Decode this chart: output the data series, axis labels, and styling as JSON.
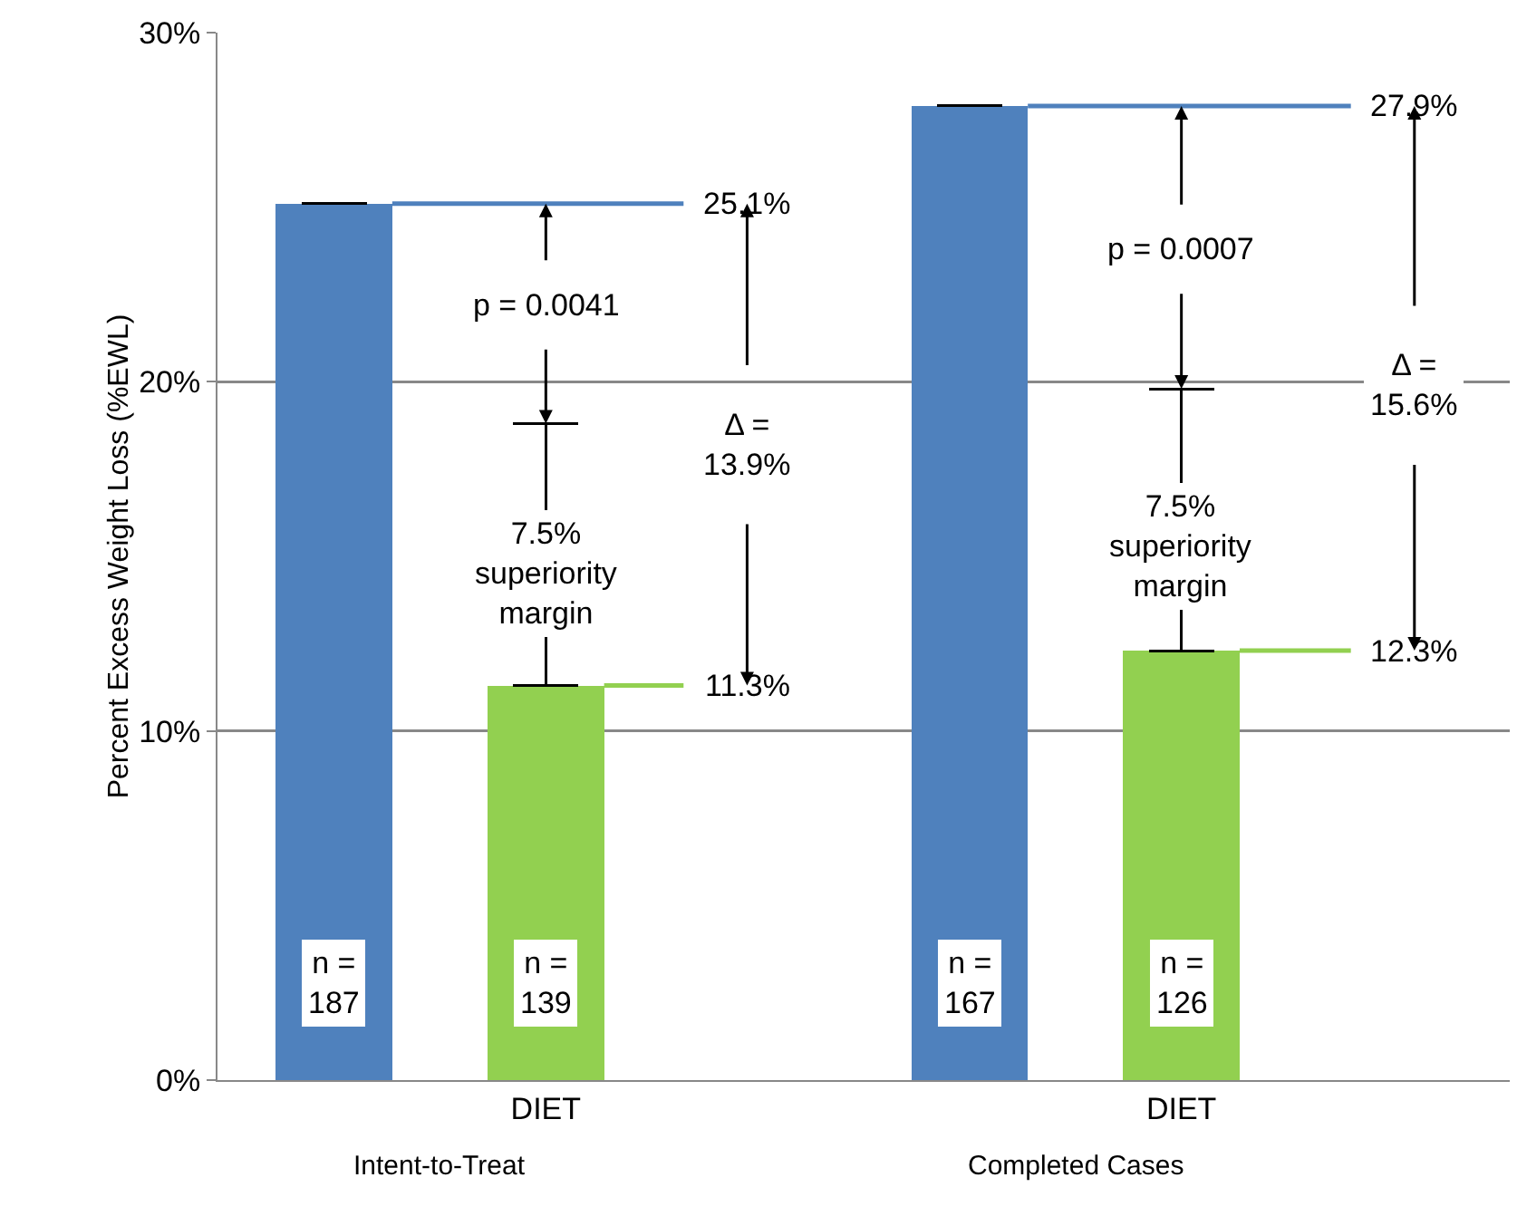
{
  "chart_data": {
    "type": "bar",
    "ylabel": "Percent Excess Weight Loss (%EWL)",
    "categories": [
      null,
      "DIET",
      null,
      null,
      "DIET",
      null
    ],
    "values": [
      25.1,
      11.3,
      null,
      27.9,
      12.3,
      null
    ],
    "colors": [
      "#4f81bd",
      "#92d050",
      "#92d050",
      "#4f81bd",
      "#92d050",
      "#92d050"
    ],
    "value_labels": [
      "25.1%",
      "11.3%",
      null,
      "27.9%",
      "12.3%",
      null
    ],
    "errors": [
      null,
      [
        11.3,
        18.8
      ],
      null,
      null,
      [
        12.3,
        19.8
      ],
      null
    ],
    "ylim": [
      0,
      30
    ],
    "yticks": [
      {
        "value": 0,
        "label": "0%"
      },
      {
        "value": 10,
        "label": "10%"
      },
      {
        "value": 20,
        "label": "20%"
      },
      {
        "value": 30,
        "label": "30%"
      }
    ],
    "grid": "y",
    "annotations": [
      {
        "text": "p = 0.0041",
        "y": 18.8
      },
      "7.5%\nsuperiority\nmargin",
      "Δ =\n13.9%",
      {
        "text": "p = 0.0007",
        "y": 19.8
      },
      "7.5%\nsuperiority\nmargin",
      "Δ =\n15.6%",
      "n =\n187",
      "n =\n139",
      "n =\n167",
      "n =\n126",
      "Intent-to-Treat",
      "Completed Cases"
    ]
  }
}
